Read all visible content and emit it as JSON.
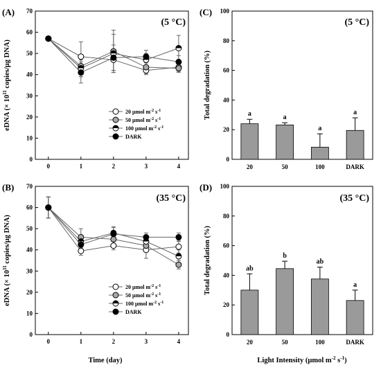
{
  "shared": {
    "xlabel_time": "Time (day)",
    "xlabel_light": "Light Intensity (µmol m",
    "xlabel_light_sup": "-2",
    "xlabel_light_mid": " s",
    "xlabel_light_sup2": "-1",
    "xlabel_light_end": ")",
    "ylabel_edna_a": "eDNA (× 10",
    "ylabel_edna_sup": "11",
    "ylabel_edna_b": " copies/µg DNA)",
    "ylabel_deg": "Total degradation (%)"
  },
  "legend": [
    {
      "name": "20 µmol m",
      "sup1": "-2",
      "mid": " s",
      "sup2": "-1",
      "marker": "open"
    },
    {
      "name": "50 µmol m",
      "sup1": "-2",
      "mid": " s",
      "sup2": "-1",
      "marker": "gray"
    },
    {
      "name": "100 µmol m",
      "sup1": "-2",
      "mid": " s",
      "sup2": "-1",
      "marker": "half"
    },
    {
      "name": "DARK",
      "sup1": "",
      "mid": "",
      "sup2": "",
      "marker": "black"
    }
  ],
  "chart_data": [
    {
      "panel": "(A)",
      "annotation": "(5 °C)",
      "type": "line",
      "x": [
        0,
        1,
        2,
        3,
        4
      ],
      "ylim": [
        0,
        70
      ],
      "yticks": [
        0,
        10,
        20,
        30,
        40,
        50,
        60,
        70
      ],
      "xticks": [
        0,
        1,
        2,
        3,
        4
      ],
      "series": [
        {
          "name": "20 µmol m-2 s-1",
          "marker": "open",
          "values": [
            57,
            48.5,
            47,
            42,
            43.5
          ],
          "err": [
            0,
            7,
            5,
            2,
            2
          ]
        },
        {
          "name": "50 µmol m-2 s-1",
          "marker": "gray",
          "values": [
            57,
            44,
            51,
            43.5,
            43
          ],
          "err": [
            0,
            5,
            10,
            3,
            2
          ]
        },
        {
          "name": "100 µmol m-2 s-1",
          "marker": "half",
          "values": [
            57,
            43,
            50,
            47,
            52.5
          ],
          "err": [
            0,
            4,
            9,
            3,
            6
          ]
        },
        {
          "name": "DARK",
          "marker": "black",
          "values": [
            57,
            41,
            48,
            48.5,
            46
          ],
          "err": [
            0,
            5,
            6,
            3,
            3
          ]
        }
      ]
    },
    {
      "panel": "(B)",
      "annotation": "(35 °C)",
      "type": "line",
      "x": [
        0,
        1,
        2,
        3,
        4
      ],
      "ylim": [
        0,
        70
      ],
      "yticks": [
        0,
        10,
        20,
        30,
        40,
        50,
        60,
        70
      ],
      "xticks": [
        0,
        1,
        2,
        3,
        4
      ],
      "series": [
        {
          "name": "20 µmol m-2 s-1",
          "marker": "open",
          "values": [
            60,
            39.5,
            42,
            40,
            41.5
          ],
          "err": [
            5,
            2,
            2,
            4,
            3
          ]
        },
        {
          "name": "50 µmol m-2 s-1",
          "marker": "gray",
          "values": [
            60,
            46,
            45,
            42,
            33
          ],
          "err": [
            5,
            4,
            3,
            3,
            2
          ]
        },
        {
          "name": "100 µmol m-2 s-1",
          "marker": "half",
          "values": [
            60,
            44,
            48,
            44,
            37
          ],
          "err": [
            5,
            3,
            3,
            3,
            3
          ]
        },
        {
          "name": "DARK",
          "marker": "black",
          "values": [
            60,
            42.5,
            47.5,
            46,
            46
          ],
          "err": [
            5,
            3,
            3,
            2,
            2
          ]
        }
      ]
    },
    {
      "panel": "(C)",
      "annotation": "(5 °C)",
      "type": "bar",
      "categories": [
        "20",
        "50",
        "100",
        "DARK"
      ],
      "values": [
        24,
        23.2,
        8.2,
        19.5
      ],
      "err": [
        3,
        1.5,
        9,
        8.5
      ],
      "letters": [
        "a",
        "a",
        "a",
        "a"
      ],
      "ylim": [
        0,
        100
      ],
      "yticks": [
        0,
        20,
        40,
        60,
        80,
        100
      ]
    },
    {
      "panel": "(D)",
      "annotation": "(35 °C)",
      "type": "bar",
      "categories": [
        "20",
        "50",
        "100",
        "DARK"
      ],
      "values": [
        30,
        44.5,
        37.5,
        23
      ],
      "err": [
        11,
        5,
        8,
        7
      ],
      "letters": [
        "ab",
        "b",
        "ab",
        "a"
      ],
      "ylim": [
        0,
        100
      ],
      "yticks": [
        0,
        20,
        40,
        60,
        80,
        100
      ]
    }
  ],
  "colors": {
    "bar_fill": "#9a9a9a",
    "gray_marker": "#a8a8a8",
    "line": "#666666",
    "ink": "#000000"
  }
}
